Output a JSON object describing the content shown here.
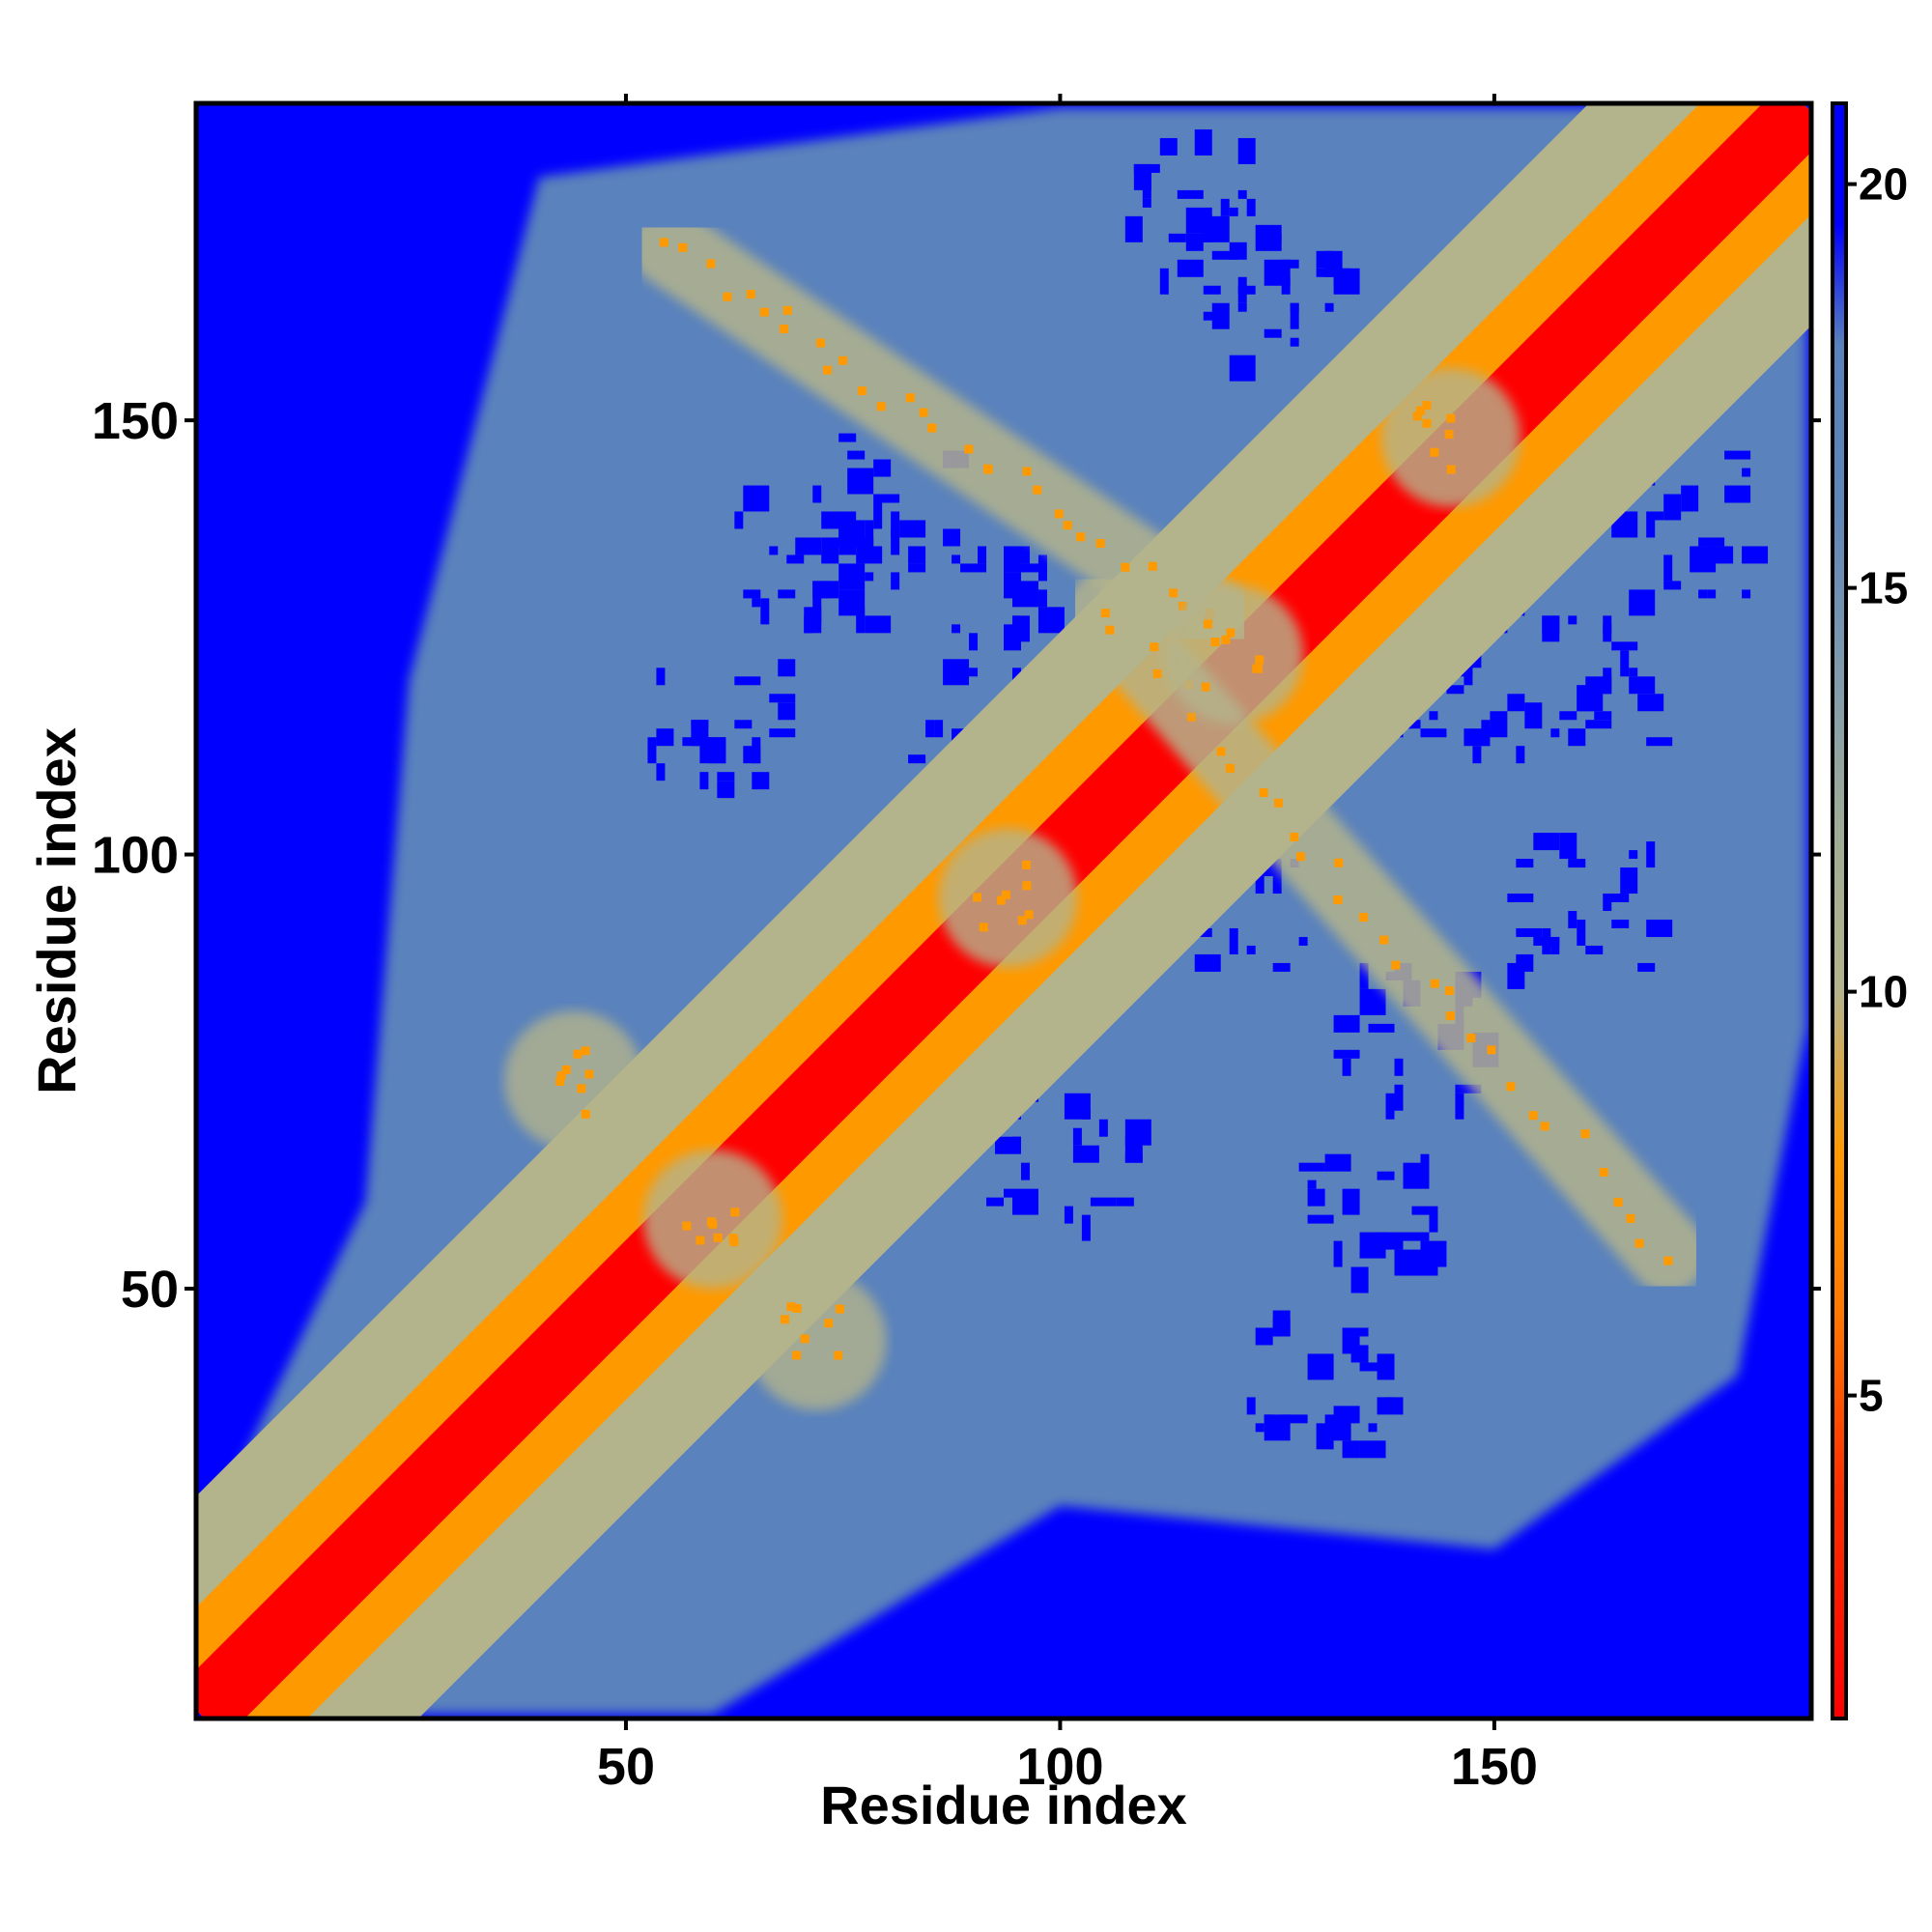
{
  "chart_data": {
    "type": "heatmap",
    "title": "",
    "xlabel": "Residue index",
    "ylabel": "Residue index",
    "n_residues": 186,
    "xlim": [
      1,
      186
    ],
    "ylim": [
      1,
      186
    ],
    "x_ticks": [
      50,
      100,
      150
    ],
    "y_ticks": [
      50,
      100,
      150
    ],
    "colorbar": {
      "ticks": [
        5,
        10,
        15,
        20
      ],
      "range": [
        1,
        21
      ],
      "stops": [
        {
          "value": 1,
          "color": "#ff0000"
        },
        {
          "value": 4,
          "color": "#ff3300"
        },
        {
          "value": 6,
          "color": "#ff7700"
        },
        {
          "value": 8,
          "color": "#ff9900"
        },
        {
          "value": 10,
          "color": "#b4b48c"
        },
        {
          "value": 12,
          "color": "#a0ac96"
        },
        {
          "value": 14,
          "color": "#7f9aae"
        },
        {
          "value": 16,
          "color": "#5f86b8"
        },
        {
          "value": 18,
          "color": "#5a82bc"
        },
        {
          "value": 19.5,
          "color": "#0000ff"
        },
        {
          "value": 21,
          "color": "#0000ff"
        }
      ]
    },
    "features": {
      "diagonal_band_halfwidth": 4,
      "antidiagonal_contact_1": {
        "x": [
          105,
          170
        ],
        "y": [
          128,
          54
        ]
      },
      "antidiagonal_contact_2": {
        "x": [
          55,
          118
        ],
        "y": [
          170,
          127
        ]
      },
      "cross_contacts": [
        {
          "x": 72,
          "y": 44
        },
        {
          "x": 44,
          "y": 74
        },
        {
          "x": 120,
          "y": 123
        },
        {
          "x": 145,
          "y": 148
        },
        {
          "x": 60,
          "y": 58
        },
        {
          "x": 94,
          "y": 95
        }
      ],
      "colors": {
        "near": "#ff0000",
        "close": "#ff9900",
        "mid": "#b4b48c",
        "far": "#5a82bc",
        "none": "#0000ff"
      }
    }
  }
}
